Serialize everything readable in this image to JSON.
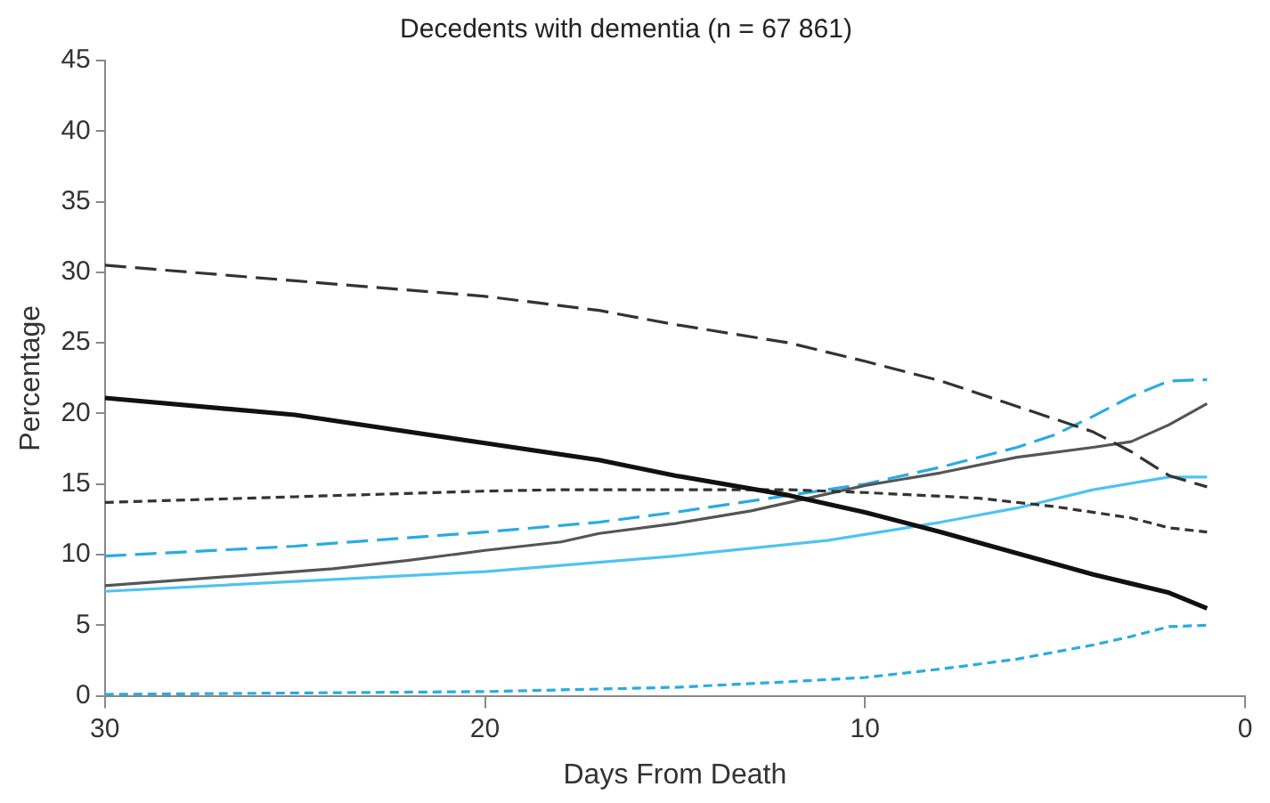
{
  "chart_data": {
    "type": "line",
    "title": "Decedents with dementia (n = 67 861)",
    "xlabel": "Days From Death",
    "ylabel": "Percentage",
    "xlim": [
      30,
      0
    ],
    "xticks": [
      30,
      20,
      10,
      0
    ],
    "ylim": [
      0,
      45
    ],
    "yticks": [
      0,
      5,
      10,
      15,
      20,
      25,
      30,
      35,
      40,
      45
    ],
    "grid": false,
    "legend": false,
    "marker": "none",
    "series": [
      {
        "color": "#333333",
        "line_style": "dashed",
        "x": [
          30,
          25,
          20,
          17,
          15,
          12,
          10,
          8,
          6,
          4,
          3,
          2,
          1
        ],
        "values": [
          30.5,
          29.4,
          28.3,
          27.3,
          26.3,
          25,
          23.7,
          22.3,
          20.5,
          18.7,
          17.3,
          15.6,
          14.8
        ]
      },
      {
        "color": "#111111",
        "line_style": "solid",
        "x": [
          30,
          25,
          20,
          17,
          15,
          12,
          10,
          8,
          6,
          4,
          2,
          1
        ],
        "values": [
          21.1,
          19.9,
          17.9,
          16.7,
          15.6,
          14.2,
          13,
          11.6,
          10.1,
          8.6,
          7.3,
          6.2
        ]
      },
      {
        "color": "#333333",
        "line_style": "dotted",
        "x": [
          30,
          25,
          20,
          18,
          15,
          12,
          10,
          7,
          5,
          3,
          2,
          1
        ],
        "values": [
          13.7,
          14.1,
          14.5,
          14.6,
          14.6,
          14.6,
          14.4,
          14,
          13.4,
          12.6,
          11.9,
          11.6
        ]
      },
      {
        "color": "#555555",
        "line_style": "solid",
        "x": [
          30,
          27,
          24,
          22,
          20,
          18,
          17,
          15,
          13,
          10,
          8,
          6,
          4,
          3,
          2,
          1
        ],
        "values": [
          7.8,
          8.4,
          9,
          9.6,
          10.3,
          10.9,
          11.5,
          12.2,
          13.1,
          14.9,
          15.8,
          16.9,
          17.6,
          18,
          19.2,
          20.7
        ]
      },
      {
        "color": "#29abe2",
        "line_style": "dashed",
        "x": [
          30,
          25,
          20,
          17,
          15,
          12,
          10,
          8,
          6,
          5,
          4,
          3,
          2,
          1
        ],
        "values": [
          9.9,
          10.6,
          11.6,
          12.3,
          13,
          14.2,
          15,
          16.2,
          17.6,
          18.5,
          19.8,
          21.2,
          22.3,
          22.4
        ]
      },
      {
        "color": "#4fc3f0",
        "line_style": "solid",
        "x": [
          30,
          25,
          20,
          15,
          11,
          8,
          6,
          4,
          2,
          1
        ],
        "values": [
          7.4,
          8.1,
          8.8,
          9.9,
          11,
          12.3,
          13.3,
          14.6,
          15.5,
          15.5
        ]
      },
      {
        "color": "#29abe2",
        "line_style": "dotted",
        "x": [
          30,
          20,
          15,
          12,
          10,
          8,
          6,
          4,
          3,
          2,
          1
        ],
        "values": [
          0.1,
          0.3,
          0.6,
          1,
          1.3,
          1.9,
          2.6,
          3.6,
          4.2,
          4.9,
          5
        ]
      }
    ]
  }
}
